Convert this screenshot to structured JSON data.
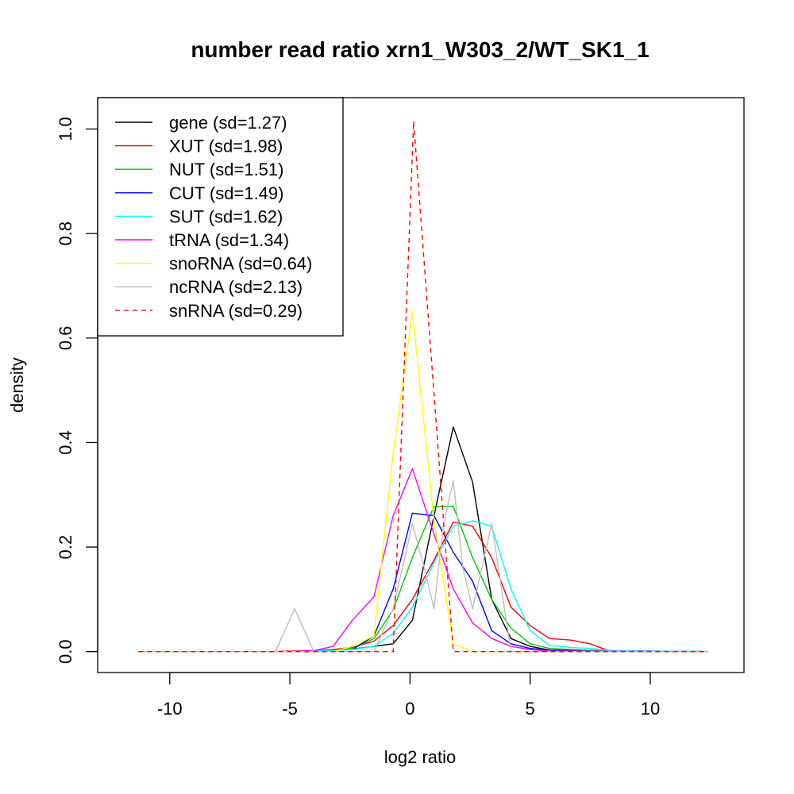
{
  "chart_data": {
    "type": "line",
    "title": "number read ratio xrn1_W303_2/WT_SK1_1",
    "xlabel": "log2 ratio",
    "ylabel": "density",
    "xlim": [
      -13,
      13.9
    ],
    "ylim": [
      -0.04,
      1.06
    ],
    "xticks": [
      -10,
      -5,
      0,
      5,
      10
    ],
    "yticks": [
      0.0,
      0.2,
      0.4,
      0.6,
      0.8,
      1.0
    ],
    "xtick_labels": [
      "-10",
      "-5",
      "0",
      "5",
      "10"
    ],
    "ytick_labels": [
      "0.0",
      "0.2",
      "0.4",
      "0.6",
      "0.8",
      "1.0"
    ],
    "grid": false,
    "legend_position": "top-left",
    "series": [
      {
        "name": "gene (sd=1.27)",
        "color": "#000000",
        "dash": false,
        "x": [
          -11.3,
          -4.7,
          -3.5,
          -2.4,
          -1.5,
          -0.7,
          0.1,
          1.0,
          1.8,
          2.6,
          3.4,
          4.2,
          5.0,
          5.8,
          12.4
        ],
        "y": [
          0,
          0,
          0.002,
          0.005,
          0.01,
          0.015,
          0.06,
          0.26,
          0.43,
          0.325,
          0.1,
          0.025,
          0.01,
          0.003,
          0
        ]
      },
      {
        "name": "XUT (sd=1.98)",
        "color": "#ff0000",
        "dash": false,
        "x": [
          -11.3,
          -6.0,
          -4.8,
          -4.0,
          -3.2,
          -2.4,
          -1.5,
          -0.7,
          0.1,
          1.0,
          1.8,
          2.6,
          3.4,
          4.2,
          5.0,
          5.8,
          6.7,
          7.5,
          8.3,
          12.4
        ],
        "y": [
          0,
          0,
          0.001,
          0.002,
          0.004,
          0.008,
          0.02,
          0.05,
          0.1,
          0.175,
          0.248,
          0.24,
          0.18,
          0.085,
          0.05,
          0.025,
          0.022,
          0.015,
          0.001,
          0
        ]
      },
      {
        "name": "NUT (sd=1.51)",
        "color": "#00cd00",
        "dash": false,
        "x": [
          -11.3,
          -4.8,
          -4.0,
          -3.2,
          -2.4,
          -1.5,
          -0.7,
          0.1,
          1.0,
          1.8,
          2.6,
          3.4,
          4.2,
          5.0,
          5.8,
          6.7,
          8.3,
          12.4
        ],
        "y": [
          0,
          0,
          0.001,
          0.003,
          0.006,
          0.025,
          0.08,
          0.18,
          0.278,
          0.278,
          0.18,
          0.1,
          0.045,
          0.015,
          0.006,
          0.004,
          0.001,
          0
        ]
      },
      {
        "name": "CUT (sd=1.49)",
        "color": "#0000ff",
        "dash": false,
        "x": [
          -11.3,
          -4.8,
          -4.0,
          -3.2,
          -2.4,
          -1.5,
          -0.7,
          0.1,
          1.0,
          1.8,
          2.6,
          3.4,
          4.2,
          5.0,
          5.8,
          6.7,
          12.4
        ],
        "y": [
          0,
          0,
          0.001,
          0.002,
          0.004,
          0.03,
          0.12,
          0.265,
          0.26,
          0.19,
          0.135,
          0.04,
          0.015,
          0.006,
          0.003,
          0.001,
          0
        ]
      },
      {
        "name": "SUT (sd=1.62)",
        "color": "#00ffff",
        "dash": false,
        "x": [
          -11.3,
          -4.8,
          -4.0,
          -3.2,
          -2.4,
          -1.5,
          -0.7,
          0.1,
          1.0,
          1.8,
          2.6,
          3.4,
          4.2,
          5.0,
          5.8,
          6.7,
          7.5,
          8.3,
          12.4
        ],
        "y": [
          0,
          0,
          0.001,
          0.002,
          0.004,
          0.01,
          0.035,
          0.085,
          0.17,
          0.24,
          0.25,
          0.24,
          0.12,
          0.04,
          0.012,
          0.008,
          0.006,
          0.002,
          0
        ]
      },
      {
        "name": "tRNA (sd=1.34)",
        "color": "#ff00ff",
        "dash": false,
        "x": [
          -11.3,
          -4.8,
          -4.0,
          -3.2,
          -2.4,
          -1.5,
          -0.7,
          0.1,
          1.0,
          1.8,
          2.6,
          3.4,
          4.2,
          5.0,
          5.8,
          12.4
        ],
        "y": [
          0,
          0,
          0.002,
          0.01,
          0.06,
          0.105,
          0.26,
          0.35,
          0.225,
          0.12,
          0.055,
          0.025,
          0.01,
          0.004,
          0.001,
          0
        ]
      },
      {
        "name": "snoRNA (sd=0.64)",
        "color": "#ffff00",
        "dash": false,
        "x": [
          -11.3,
          -3.2,
          -2.4,
          -1.5,
          -0.7,
          0.1,
          1.0,
          1.8,
          2.6,
          12.4
        ],
        "y": [
          0,
          0,
          0.01,
          0.03,
          0.38,
          0.65,
          0.25,
          0.015,
          0,
          0
        ]
      },
      {
        "name": "ncRNA (sd=2.13)",
        "color": "#bebebe",
        "dash": false,
        "x": [
          -11.3,
          -5.6,
          -4.8,
          -4.0,
          -3.2,
          -2.4,
          -1.5,
          -0.7,
          0.1,
          0.6,
          1.0,
          1.4,
          1.8,
          2.2,
          2.6,
          3.0,
          3.4,
          4.2,
          12.4
        ],
        "y": [
          0,
          0,
          0.082,
          0,
          0,
          0,
          0,
          0.082,
          0.245,
          0.16,
          0.082,
          0.245,
          0.327,
          0.16,
          0.082,
          0.163,
          0.245,
          0,
          0
        ]
      },
      {
        "name": "snRNA (sd=0.29)",
        "color": "#ff0000",
        "dash": true,
        "x": [
          -11.3,
          -0.7,
          0.15,
          1.8,
          12.4
        ],
        "y": [
          0,
          0,
          1.015,
          0,
          0
        ]
      }
    ]
  }
}
